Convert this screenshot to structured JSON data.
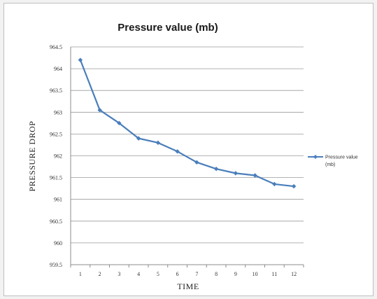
{
  "chart_data": {
    "type": "line",
    "title": "Pressure value (mb)",
    "xlabel": "TIME",
    "ylabel": "PRESSURE  DROP",
    "x": [
      1,
      2,
      3,
      4,
      5,
      6,
      7,
      8,
      9,
      10,
      11,
      12
    ],
    "x_tick_labels": [
      "1",
      "2",
      "3",
      "4",
      "5",
      "6",
      "7",
      "8",
      "9",
      "10",
      "11",
      "12"
    ],
    "y_tick_labels": [
      "959.5",
      "960",
      "960.5",
      "961",
      "961.5",
      "962",
      "962.5",
      "963",
      "963.5",
      "964",
      "964.5"
    ],
    "ylim": [
      959.5,
      964.5
    ],
    "grid": "horizontal",
    "legend_position": "right",
    "series": [
      {
        "name": "Pressure value (mb)",
        "legend_lines": [
          "Pressure value",
          "(mb)"
        ],
        "values": [
          964.2,
          963.05,
          962.75,
          962.4,
          962.3,
          962.1,
          961.85,
          961.7,
          961.6,
          961.55,
          961.35,
          961.3
        ],
        "color": "#4a7ebb"
      }
    ]
  }
}
